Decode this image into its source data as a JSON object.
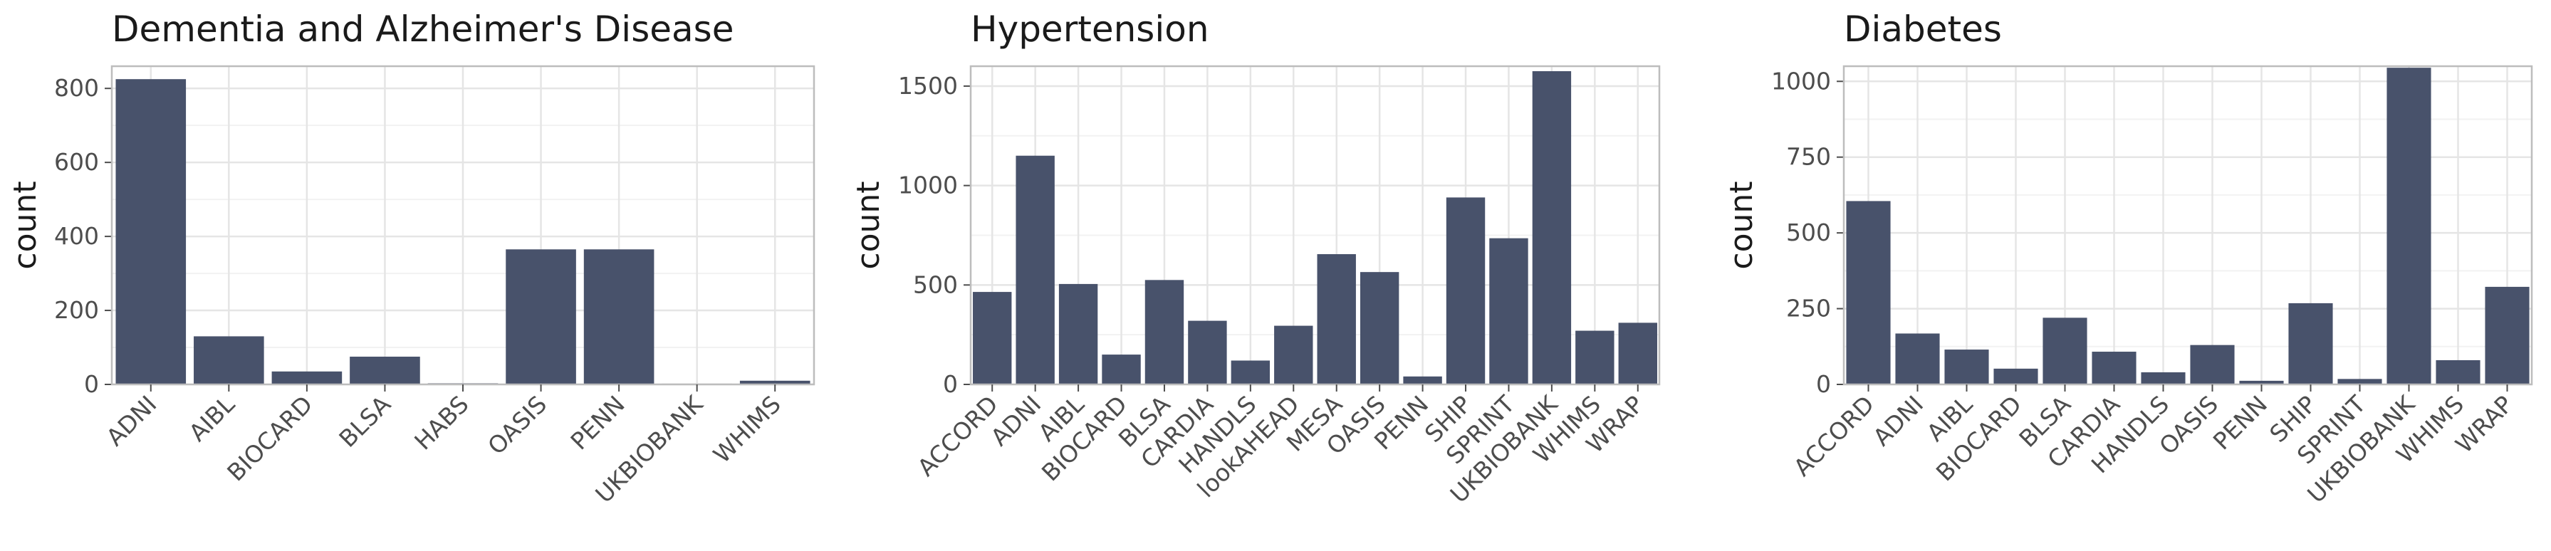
{
  "colors": {
    "bar": "#48526b",
    "grid_major": "#e5e5e5",
    "grid_minor": "#f2f2f2",
    "border": "#bdbdbd"
  },
  "chart_data": [
    {
      "type": "bar",
      "title": "Dementia and Alzheimer's Disease",
      "xlabel": "",
      "ylabel": "count",
      "ylim": [
        0,
        860
      ],
      "yticks": [
        0,
        200,
        400,
        600,
        800
      ],
      "grid": true,
      "categories": [
        "ADNI",
        "AIBL",
        "BIOCARD",
        "BLSA",
        "HABS",
        "OASIS",
        "PENN",
        "UKBIOBANK",
        "WHIMS"
      ],
      "values": [
        825,
        130,
        35,
        75,
        3,
        365,
        365,
        2,
        10
      ]
    },
    {
      "type": "bar",
      "title": "Hypertension",
      "xlabel": "",
      "ylabel": "count",
      "ylim": [
        0,
        1600
      ],
      "yticks": [
        0,
        500,
        1000,
        1500
      ],
      "grid": true,
      "categories": [
        "ACCORD",
        "ADNI",
        "AIBL",
        "BIOCARD",
        "BLSA",
        "CARDIA",
        "HANDLS",
        "lookAHEAD",
        "MESA",
        "OASIS",
        "PENN",
        "SHIP",
        "SPRINT",
        "UKBIOBANK",
        "WHIMS",
        "WRAP"
      ],
      "values": [
        465,
        1150,
        505,
        150,
        525,
        320,
        120,
        295,
        655,
        565,
        40,
        940,
        735,
        1575,
        270,
        310
      ]
    },
    {
      "type": "bar",
      "title": "Diabetes",
      "xlabel": "",
      "ylabel": "count",
      "ylim": [
        0,
        1050
      ],
      "yticks": [
        0,
        250,
        500,
        750,
        1000
      ],
      "grid": true,
      "categories": [
        "ACCORD",
        "ADNI",
        "AIBL",
        "BIOCARD",
        "BLSA",
        "CARDIA",
        "HANDLS",
        "OASIS",
        "PENN",
        "SHIP",
        "SPRINT",
        "UKBIOBANK",
        "WHIMS",
        "WRAP"
      ],
      "values": [
        605,
        168,
        115,
        52,
        220,
        108,
        40,
        130,
        12,
        268,
        18,
        1045,
        80,
        322
      ]
    }
  ]
}
